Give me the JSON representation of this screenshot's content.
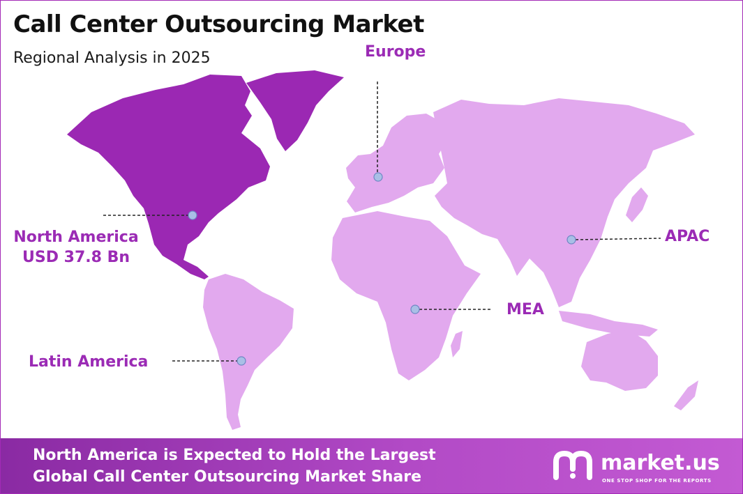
{
  "header": {
    "title": "Call Center Outsourcing Market",
    "subtitle": "Regional Analysis in 2025"
  },
  "regions": {
    "north_america": {
      "name": "North America",
      "value": "USD  37.8  Bn"
    },
    "europe": {
      "name": "Europe"
    },
    "apac": {
      "name": "APAC"
    },
    "mea": {
      "name": "MEA"
    },
    "latin_america": {
      "name": "Latin America"
    }
  },
  "footer": {
    "line1": "North America is Expected to Hold the Largest",
    "line2": "Global Call Center Outsourcing Market Share"
  },
  "brand": {
    "name": "market.us",
    "tagline": "ONE STOP SHOP FOR THE REPORTS"
  },
  "colors": {
    "highlight_region": "#9b28b3",
    "other_regions": "#e2a9ee",
    "label_text": "#9b2bb5",
    "marker": "#a9bfe6",
    "footer": "#a13fbc"
  }
}
